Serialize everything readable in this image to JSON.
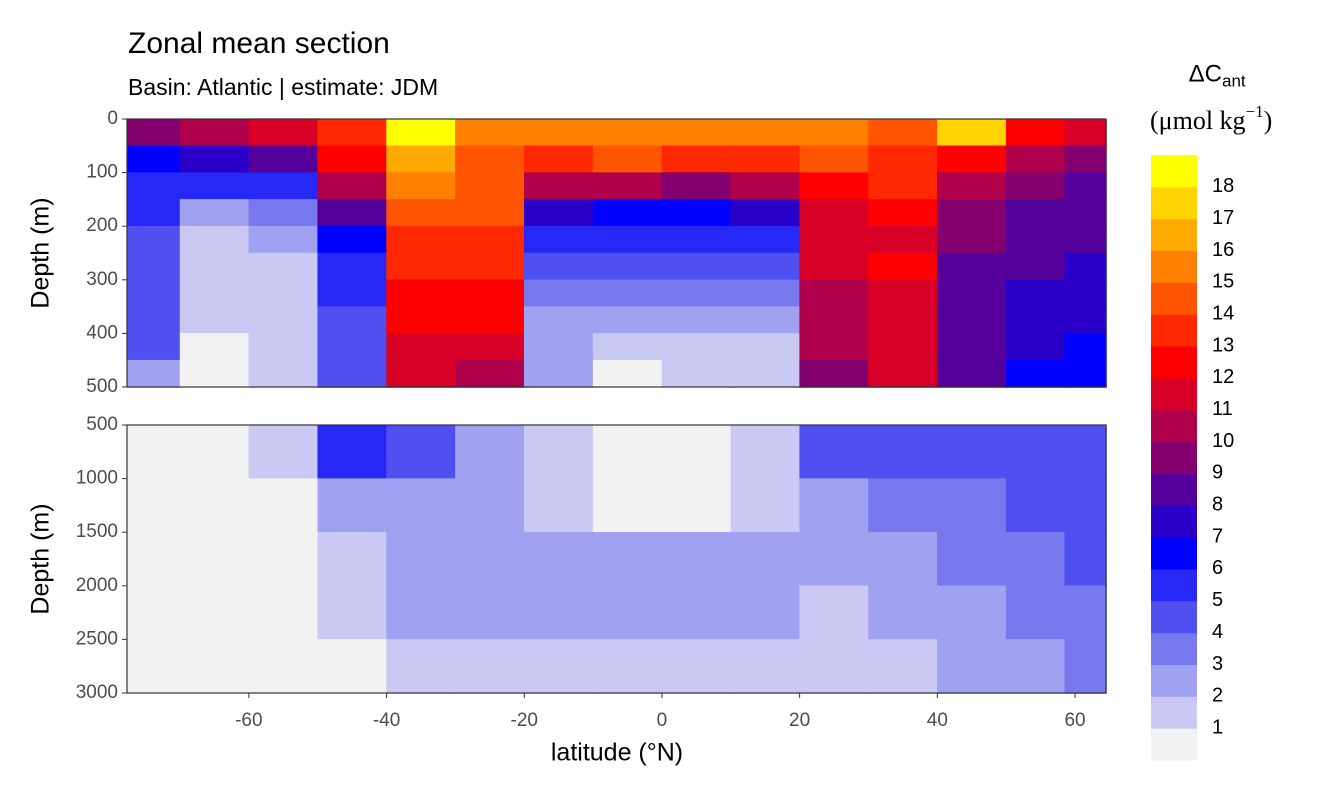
{
  "chart_data": {
    "type": "contour",
    "title": "Zonal mean section",
    "subtitle": "Basin: Atlantic | estimate: JDM",
    "x_label": "latitude (°N)",
    "y_label": "Depth (m)",
    "legend_title": {
      "symbol": "ΔC",
      "subscript": "ant",
      "unit": "(μmol kg",
      "exponent": "−1",
      "close": ")"
    },
    "x": [
      -75,
      -65,
      -55,
      -45,
      -35,
      -25,
      -15,
      -5,
      5,
      15,
      25,
      35,
      45,
      55,
      62
    ],
    "xlim": [
      -77.7,
      64.5
    ],
    "xticks": [
      -60,
      -40,
      -20,
      0,
      20,
      40,
      60
    ],
    "levels": [
      1,
      2,
      3,
      4,
      5,
      6,
      7,
      8,
      9,
      10,
      11,
      12,
      13,
      14,
      15,
      16,
      17,
      18
    ],
    "colors": [
      "#f2f2f2",
      "#c9c9f4",
      "#a1a1f2",
      "#7878ef",
      "#5050f0",
      "#2828f6",
      "#0000ff",
      "#2a00c8",
      "#55009b",
      "#85006f",
      "#b0004c",
      "#d80026",
      "#ff0000",
      "#ff2800",
      "#ff5500",
      "#ff7f00",
      "#ffaa00",
      "#ffd400",
      "#ffff00"
    ],
    "panels": [
      {
        "y": [
          25,
          75,
          125,
          175,
          225,
          275,
          325,
          375,
          425,
          475
        ],
        "ylim": [
          0,
          500
        ],
        "yticks": [
          0,
          100,
          200,
          300,
          400,
          500
        ],
        "values": [
          [
            10,
            7,
            6,
            6,
            5,
            5,
            5,
            5,
            5,
            3
          ],
          [
            11,
            8,
            6,
            3,
            2,
            2,
            2,
            2,
            1,
            1
          ],
          [
            12,
            9,
            6,
            4,
            3,
            2,
            2,
            2,
            2,
            2
          ],
          [
            14,
            13,
            11,
            9,
            7,
            6,
            6,
            5,
            5,
            5
          ],
          [
            19,
            17,
            16,
            15,
            14,
            14,
            13,
            13,
            12,
            12
          ],
          [
            16,
            15,
            15,
            15,
            14,
            14,
            13,
            13,
            12,
            11
          ],
          [
            16,
            14,
            11,
            8,
            6,
            5,
            4,
            3,
            3,
            3
          ],
          [
            16,
            15,
            11,
            7,
            6,
            5,
            4,
            3,
            2,
            1
          ],
          [
            16,
            14,
            10,
            7,
            6,
            5,
            4,
            3,
            2,
            2
          ],
          [
            16,
            14,
            11,
            8,
            6,
            5,
            4,
            3,
            2,
            2
          ],
          [
            16,
            15,
            13,
            12,
            12,
            12,
            11,
            11,
            11,
            10
          ],
          [
            15,
            14,
            14,
            13,
            12,
            13,
            12,
            12,
            12,
            12
          ],
          [
            18,
            13,
            11,
            10,
            10,
            9,
            9,
            9,
            9,
            9
          ],
          [
            13,
            11,
            10,
            9,
            9,
            9,
            8,
            8,
            8,
            7
          ],
          [
            12,
            10,
            9,
            9,
            9,
            8,
            8,
            8,
            7,
            7
          ]
        ]
      },
      {
        "y": [
          750,
          1250,
          1750,
          2250,
          2750
        ],
        "ylim": [
          500,
          3000
        ],
        "yticks": [
          500,
          1000,
          1500,
          2000,
          2500,
          3000
        ],
        "values": [
          [
            1,
            1,
            1,
            1,
            1
          ],
          [
            1,
            1,
            1,
            1,
            1
          ],
          [
            2,
            1,
            1,
            1,
            1
          ],
          [
            6,
            3,
            2,
            2,
            1
          ],
          [
            5,
            3,
            3,
            3,
            2
          ],
          [
            3,
            3,
            3,
            3,
            2
          ],
          [
            2,
            2,
            3,
            3,
            2
          ],
          [
            1,
            1,
            3,
            3,
            2
          ],
          [
            1,
            1,
            3,
            3,
            2
          ],
          [
            2,
            2,
            3,
            3,
            2
          ],
          [
            5,
            3,
            3,
            2,
            2
          ],
          [
            5,
            4,
            3,
            3,
            2
          ],
          [
            5,
            4,
            4,
            3,
            3
          ],
          [
            5,
            5,
            4,
            4,
            3
          ],
          [
            5,
            5,
            5,
            4,
            4
          ]
        ]
      }
    ]
  }
}
